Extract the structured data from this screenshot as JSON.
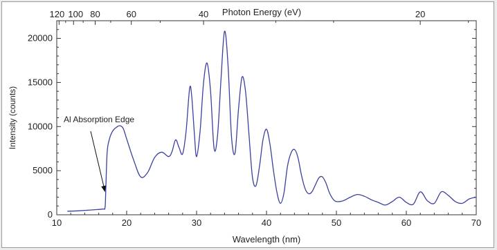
{
  "chart_data": {
    "type": "line",
    "xlabel": "Wavelength (nm)",
    "ylabel": "Intensity (counts)",
    "top_axis_label": "Photon Energy (eV)",
    "xlim": [
      10,
      70
    ],
    "ylim": [
      0,
      22000
    ],
    "x_ticks": [
      10,
      20,
      30,
      40,
      50,
      60,
      70
    ],
    "y_ticks": [
      0,
      5000,
      10000,
      15000,
      20000
    ],
    "top_ticks": [
      {
        "label": "120",
        "energy_ev": 120
      },
      {
        "label": "100",
        "energy_ev": 100
      },
      {
        "label": "80",
        "energy_ev": 80
      },
      {
        "label": "60",
        "energy_ev": 60
      },
      {
        "label": "40",
        "energy_ev": 40
      },
      {
        "label": "20",
        "energy_ev": 20
      }
    ],
    "grid": false,
    "line_color": "#3a3fa0",
    "annotation": {
      "text": "Al Absorption Edge",
      "x": 17.0,
      "y": 2500
    },
    "series": [
      {
        "x": [
          11.5,
          13,
          15,
          16.6,
          16.9,
          17.0,
          17.2,
          17.5,
          18,
          18.5,
          19,
          19.5,
          20,
          21,
          22,
          23,
          24,
          25,
          26,
          26.5,
          27,
          27.5,
          28,
          28.5,
          29,
          29.3,
          29.7,
          30,
          30.5,
          31,
          31.5,
          32,
          32.5,
          33,
          33.5,
          34,
          34.5,
          35,
          35.5,
          36,
          36.5,
          37,
          37.5,
          38,
          38.5,
          39,
          39.5,
          40,
          40.5,
          41,
          41.5,
          42,
          42.5,
          43,
          43.5,
          44,
          44.5,
          45,
          45.5,
          46,
          46.5,
          47,
          47.5,
          48,
          48.5,
          49,
          49.5,
          50,
          51,
          52,
          53,
          54,
          55,
          56,
          57,
          58,
          59,
          60,
          61,
          62,
          63,
          64,
          65,
          66,
          67,
          68,
          69,
          70
        ],
        "y": [
          400,
          450,
          550,
          650,
          800,
          2500,
          7000,
          8500,
          9500,
          9900,
          10100,
          9800,
          8600,
          6200,
          4300,
          4800,
          6500,
          7100,
          6600,
          7200,
          8500,
          7600,
          6900,
          9500,
          14300,
          13500,
          9000,
          6600,
          9500,
          15000,
          17200,
          14000,
          7500,
          9000,
          15500,
          20800,
          17000,
          8800,
          7000,
          12000,
          15600,
          14000,
          9000,
          4200,
          3300,
          5500,
          8500,
          9700,
          8000,
          5000,
          2500,
          1300,
          2500,
          5500,
          7000,
          7400,
          6500,
          4500,
          3000,
          2400,
          2600,
          3400,
          4200,
          4300,
          3600,
          2500,
          1800,
          1500,
          1600,
          2000,
          2300,
          2100,
          1700,
          1400,
          1100,
          1500,
          2000,
          1400,
          1200,
          2600,
          1600,
          1300,
          2600,
          2200,
          1500,
          1300,
          1800,
          2000
        ]
      }
    ]
  }
}
